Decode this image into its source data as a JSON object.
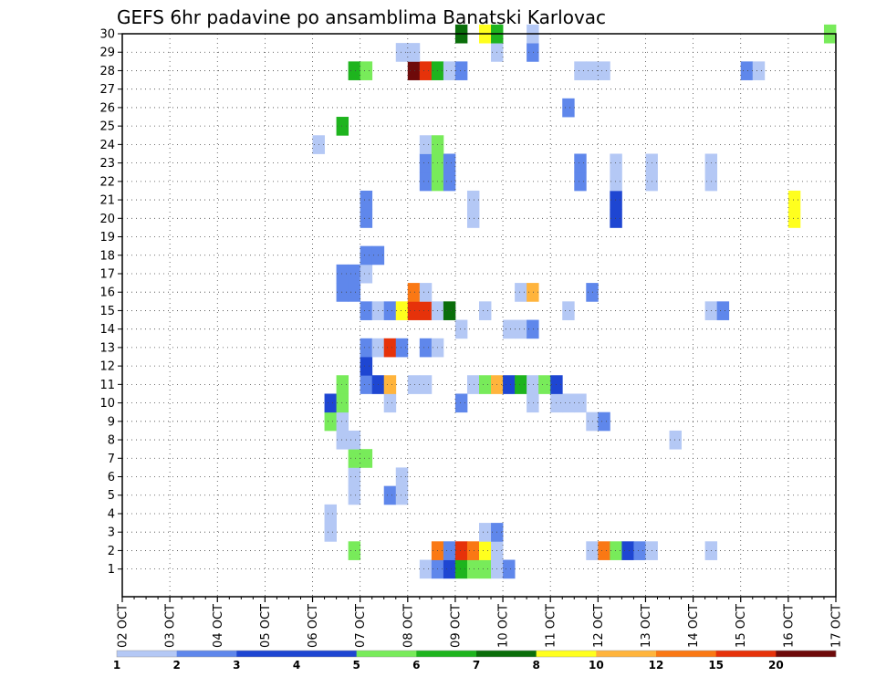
{
  "chart_data": {
    "type": "heatmap",
    "title": "GEFS 6hr padavine po ansamblima Banatski Karlovac",
    "x_tick_labels": [
      "02 OCT",
      "03 OCT",
      "04 OCT",
      "05 OCT",
      "06 OCT",
      "07 OCT",
      "08 OCT",
      "09 OCT",
      "10 OCT",
      "11 OCT",
      "12 OCT",
      "13 OCT",
      "14 OCT",
      "15 OCT",
      "16 OCT",
      "17 OCT"
    ],
    "x_range_days": [
      0,
      15
    ],
    "y_range": [
      0,
      30
    ],
    "y_ticks": [
      1,
      2,
      3,
      4,
      5,
      6,
      7,
      8,
      9,
      10,
      11,
      12,
      13,
      14,
      15,
      16,
      17,
      18,
      19,
      20,
      21,
      22,
      23,
      24,
      25,
      26,
      27,
      28,
      29,
      30
    ],
    "grid": "dotted",
    "legend_position": "bottom",
    "colorbar": {
      "labels": [
        "1",
        "2",
        "3",
        "4",
        "5",
        "6",
        "7",
        "8",
        "10",
        "12",
        "15",
        "20"
      ],
      "colors": [
        "#b4c8f5",
        "#5f87eb",
        "#1e46d2",
        "#1e46d2",
        "#78eb5a",
        "#1eb41e",
        "#0a6e0a",
        "#ffff1e",
        "#ffb43c",
        "#fa7814",
        "#e6320a",
        "#6e0a0a"
      ]
    },
    "cells_note": "each cell: [member_row, time_step_6h, color_class_index]",
    "cells": [
      [
        1,
        25,
        0
      ],
      [
        1,
        26,
        1
      ],
      [
        1,
        27,
        2
      ],
      [
        1,
        28,
        5
      ],
      [
        1,
        29,
        4
      ],
      [
        1,
        30,
        4
      ],
      [
        1,
        31,
        0
      ],
      [
        1,
        32,
        1
      ],
      [
        2,
        19,
        4
      ],
      [
        2,
        26,
        9
      ],
      [
        2,
        27,
        1
      ],
      [
        2,
        28,
        10
      ],
      [
        2,
        29,
        9
      ],
      [
        2,
        30,
        7
      ],
      [
        2,
        31,
        0
      ],
      [
        2,
        39,
        0
      ],
      [
        2,
        40,
        9
      ],
      [
        2,
        41,
        4
      ],
      [
        2,
        42,
        2
      ],
      [
        2,
        43,
        1
      ],
      [
        2,
        44,
        0
      ],
      [
        2,
        49,
        0
      ],
      [
        3,
        17,
        0
      ],
      [
        3,
        30,
        0
      ],
      [
        3,
        31,
        1
      ],
      [
        4,
        17,
        0
      ],
      [
        5,
        19,
        0
      ],
      [
        5,
        22,
        1
      ],
      [
        5,
        23,
        0
      ],
      [
        6,
        19,
        0
      ],
      [
        6,
        23,
        0
      ],
      [
        7,
        19,
        4
      ],
      [
        7,
        20,
        4
      ],
      [
        8,
        18,
        0
      ],
      [
        8,
        19,
        0
      ],
      [
        8,
        46,
        0
      ],
      [
        9,
        17,
        4
      ],
      [
        9,
        18,
        0
      ],
      [
        9,
        39,
        0
      ],
      [
        9,
        40,
        1
      ],
      [
        10,
        17,
        2
      ],
      [
        10,
        18,
        4
      ],
      [
        10,
        22,
        0
      ],
      [
        10,
        28,
        1
      ],
      [
        10,
        34,
        0
      ],
      [
        10,
        36,
        0
      ],
      [
        10,
        37,
        0
      ],
      [
        10,
        38,
        0
      ],
      [
        11,
        18,
        4
      ],
      [
        11,
        20,
        1
      ],
      [
        11,
        21,
        2
      ],
      [
        11,
        22,
        8
      ],
      [
        11,
        24,
        0
      ],
      [
        11,
        25,
        0
      ],
      [
        11,
        29,
        0
      ],
      [
        11,
        30,
        4
      ],
      [
        11,
        31,
        8
      ],
      [
        11,
        32,
        2
      ],
      [
        11,
        33,
        5
      ],
      [
        11,
        34,
        0
      ],
      [
        11,
        35,
        4
      ],
      [
        11,
        36,
        2
      ],
      [
        12,
        20,
        2
      ],
      [
        13,
        20,
        1
      ],
      [
        13,
        21,
        0
      ],
      [
        13,
        22,
        10
      ],
      [
        13,
        23,
        1
      ],
      [
        13,
        25,
        1
      ],
      [
        13,
        26,
        0
      ],
      [
        14,
        28,
        0
      ],
      [
        14,
        32,
        0
      ],
      [
        14,
        33,
        0
      ],
      [
        14,
        34,
        1
      ],
      [
        15,
        20,
        1
      ],
      [
        15,
        21,
        0
      ],
      [
        15,
        22,
        1
      ],
      [
        15,
        23,
        7
      ],
      [
        15,
        24,
        10
      ],
      [
        15,
        25,
        10
      ],
      [
        15,
        26,
        0
      ],
      [
        15,
        27,
        6
      ],
      [
        15,
        30,
        0
      ],
      [
        15,
        37,
        0
      ],
      [
        15,
        49,
        0
      ],
      [
        15,
        50,
        1
      ],
      [
        16,
        18,
        1
      ],
      [
        16,
        19,
        1
      ],
      [
        16,
        24,
        9
      ],
      [
        16,
        25,
        0
      ],
      [
        16,
        33,
        0
      ],
      [
        16,
        34,
        8
      ],
      [
        16,
        39,
        1
      ],
      [
        17,
        18,
        1
      ],
      [
        17,
        19,
        1
      ],
      [
        17,
        20,
        0
      ],
      [
        18,
        20,
        1
      ],
      [
        18,
        21,
        1
      ],
      [
        20,
        20,
        1
      ],
      [
        20,
        29,
        0
      ],
      [
        20,
        41,
        2
      ],
      [
        20,
        56,
        7
      ],
      [
        21,
        20,
        1
      ],
      [
        21,
        29,
        0
      ],
      [
        21,
        41,
        2
      ],
      [
        21,
        56,
        7
      ],
      [
        22,
        25,
        1
      ],
      [
        22,
        26,
        4
      ],
      [
        22,
        27,
        1
      ],
      [
        22,
        38,
        1
      ],
      [
        22,
        41,
        0
      ],
      [
        22,
        44,
        0
      ],
      [
        22,
        49,
        0
      ],
      [
        23,
        25,
        1
      ],
      [
        23,
        26,
        4
      ],
      [
        23,
        27,
        1
      ],
      [
        23,
        38,
        1
      ],
      [
        23,
        41,
        0
      ],
      [
        23,
        44,
        0
      ],
      [
        23,
        49,
        0
      ],
      [
        24,
        16,
        0
      ],
      [
        24,
        25,
        0
      ],
      [
        24,
        26,
        4
      ],
      [
        25,
        18,
        5
      ],
      [
        26,
        37,
        1
      ],
      [
        28,
        19,
        5
      ],
      [
        28,
        20,
        4
      ],
      [
        28,
        24,
        11
      ],
      [
        28,
        25,
        10
      ],
      [
        28,
        26,
        5
      ],
      [
        28,
        27,
        0
      ],
      [
        28,
        28,
        1
      ],
      [
        28,
        38,
        0
      ],
      [
        28,
        39,
        0
      ],
      [
        28,
        40,
        0
      ],
      [
        28,
        52,
        1
      ],
      [
        28,
        53,
        0
      ],
      [
        29,
        23,
        0
      ],
      [
        29,
        24,
        0
      ],
      [
        29,
        31,
        0
      ],
      [
        29,
        34,
        1
      ],
      [
        30,
        28,
        6
      ],
      [
        30,
        30,
        7
      ],
      [
        30,
        31,
        5
      ],
      [
        30,
        34,
        0
      ],
      [
        30,
        59,
        4
      ]
    ]
  }
}
